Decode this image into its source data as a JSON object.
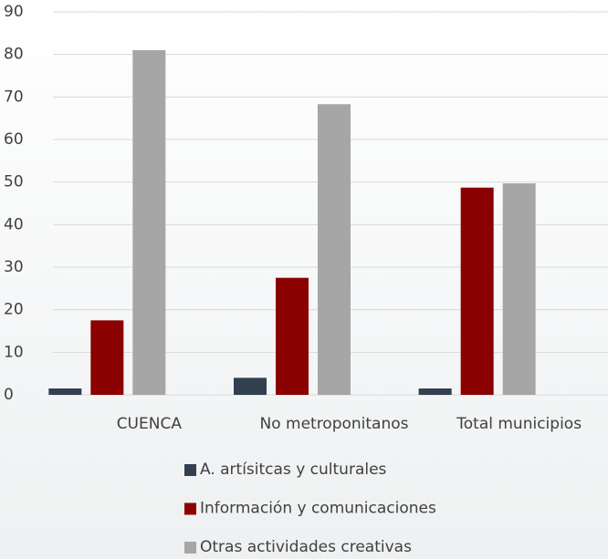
{
  "chart_data": {
    "type": "bar",
    "categories": [
      "CUENCA",
      "No metroponitanos",
      "Total municipios"
    ],
    "series": [
      {
        "name": "A. artísitcas y culturales",
        "color": "#323f4f",
        "values": [
          1.5,
          4,
          1.5
        ]
      },
      {
        "name": "Información y comunicaciones",
        "color": "#8b0000",
        "values": [
          17.5,
          27.5,
          48.7
        ]
      },
      {
        "name": "Otras actividades creativas",
        "color": "#a6a6a6",
        "values": [
          81,
          68.3,
          49.7
        ]
      }
    ],
    "ylim": [
      0,
      90
    ],
    "yticks": [
      0,
      10,
      20,
      30,
      40,
      50,
      60,
      70,
      80,
      90
    ],
    "grid": true,
    "legend": "bottom"
  }
}
